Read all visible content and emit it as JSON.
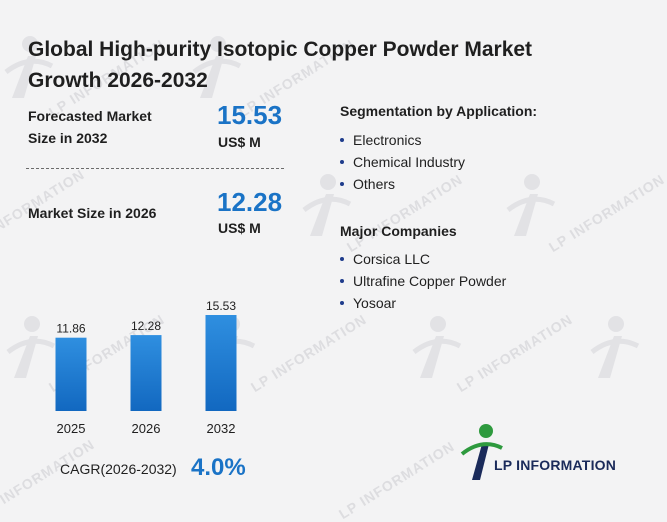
{
  "title": "Global High-purity Isotopic Copper Powder Market Growth 2026-2032",
  "forecast": {
    "label": "Forecasted Market Size in 2032",
    "value": "15.53",
    "unit": "US$ M"
  },
  "current": {
    "label": "Market Size in 2026",
    "value": "12.28",
    "unit": "US$ M"
  },
  "segmentation": {
    "heading": "Segmentation by Application:",
    "items": [
      "Electronics",
      "Chemical Industry",
      "Others"
    ]
  },
  "companies": {
    "heading": "Major Companies",
    "items": [
      "Corsica LLC",
      "Ultrafine Copper Powder",
      "Yosoar"
    ]
  },
  "cagr": {
    "label": "CAGR(2026-2032)",
    "value": "4.0%"
  },
  "watermark_text": "LP INFORMATION",
  "logo": {
    "text": "LP INFORMATION",
    "icon": "lp-information-logo-icon"
  },
  "colors": {
    "accent": "#1a73c6",
    "bar_top": "#2f8fe0",
    "bar_bottom": "#1268c0",
    "watermark": "#dddde0",
    "logo_green": "#2e9a3e",
    "logo_navy": "#1a2a5a"
  },
  "chart_data": {
    "type": "bar",
    "categories": [
      "2025",
      "2026",
      "2032"
    ],
    "values": [
      11.86,
      12.28,
      15.53
    ],
    "value_labels": [
      "11.86",
      "12.28",
      "15.53"
    ],
    "title": "",
    "xlabel": "",
    "ylabel": "",
    "grid": false,
    "legend": "none"
  }
}
